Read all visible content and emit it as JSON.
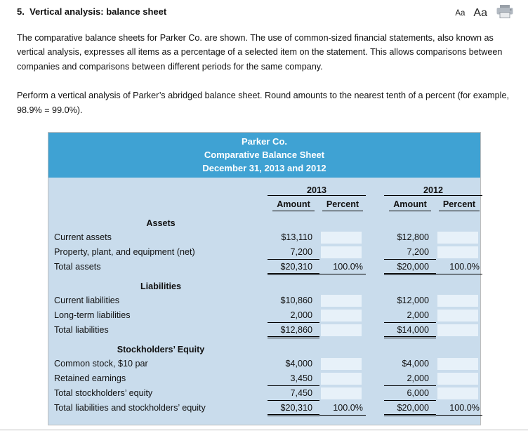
{
  "page": {
    "title": "5.  Vertical analysis: balance sheet",
    "intro": "The comparative balance sheets for Parker Co. are shown. The use of common-sized financial statements, also known as vertical analysis, expresses all items as a percentage of a selected item on the statement. This allows comparisons between companies and comparisons between different periods for the same company.",
    "instructions": "Perform a vertical analysis of Parker’s abridged balance sheet. Round amounts to the nearest tenth of a percent (for example, 98.9% = 99.0%).",
    "controls": {
      "font_small_label": "Aa",
      "font_large_label": "Aa",
      "print_icon": "printer-icon"
    }
  },
  "statement": {
    "company": "Parker Co.",
    "title": "Comparative Balance Sheet",
    "date_line": "December 31, 2013 and 2012",
    "year_2013": "2013",
    "year_2012": "2012",
    "amount_header": "Amount",
    "percent_header": "Percent",
    "colors": {
      "header_bg": "#3fa2d3",
      "body_bg": "#c9dcec",
      "input_bg": "#e7f1f9"
    },
    "rows": [
      {
        "kind": "section",
        "label": "Assets"
      },
      {
        "kind": "data",
        "label": "Current assets",
        "a13": "$13,110",
        "p13": "",
        "p13_input": true,
        "a12": "$12,800",
        "p12": "",
        "p12_input": true
      },
      {
        "kind": "data",
        "label": "Property, plant, and equipment (net)",
        "a13": "7,200",
        "p13": "",
        "p13_input": true,
        "a12": "7,200",
        "p12": "",
        "p12_input": true,
        "amt_rule": "single"
      },
      {
        "kind": "data",
        "label": "Total assets",
        "a13": "$20,310",
        "p13": "100.0%",
        "a12": "$20,000",
        "p12": "100.0%",
        "amt_rule": "double",
        "pct_rule": "single"
      },
      {
        "kind": "section",
        "label": "Liabilities"
      },
      {
        "kind": "data",
        "label": "Current liabilities",
        "a13": "$10,860",
        "p13": "",
        "p13_input": true,
        "a12": "$12,000",
        "p12": "",
        "p12_input": true
      },
      {
        "kind": "data",
        "label": "Long-term liabilities",
        "a13": "2,000",
        "p13": "",
        "p13_input": true,
        "a12": "2,000",
        "p12": "",
        "p12_input": true,
        "amt_rule": "single"
      },
      {
        "kind": "data",
        "label": "Total liabilities",
        "a13": "$12,860",
        "p13": "",
        "p13_input": true,
        "a12": "$14,000",
        "p12": "",
        "p12_input": true,
        "amt_rule": "double"
      },
      {
        "kind": "section",
        "label": "Stockholders’ Equity"
      },
      {
        "kind": "data",
        "label": "Common stock, $10 par",
        "a13": "$4,000",
        "p13": "",
        "p13_input": true,
        "a12": "$4,000",
        "p12": "",
        "p12_input": true
      },
      {
        "kind": "data",
        "label": "Retained earnings",
        "a13": "3,450",
        "p13": "",
        "p13_input": true,
        "a12": "2,000",
        "p12": "",
        "p12_input": true,
        "amt_rule": "single"
      },
      {
        "kind": "data",
        "label": "Total stockholders’ equity",
        "a13": "7,450",
        "p13": "",
        "p13_input": true,
        "a12": "6,000",
        "p12": "",
        "p12_input": true,
        "amt_rule": "single"
      },
      {
        "kind": "data",
        "label": "Total liabilities and stockholders’ equity",
        "a13": "$20,310",
        "p13": "100.0%",
        "a12": "$20,000",
        "p12": "100.0%",
        "amt_rule": "double",
        "pct_rule": "single"
      }
    ]
  }
}
